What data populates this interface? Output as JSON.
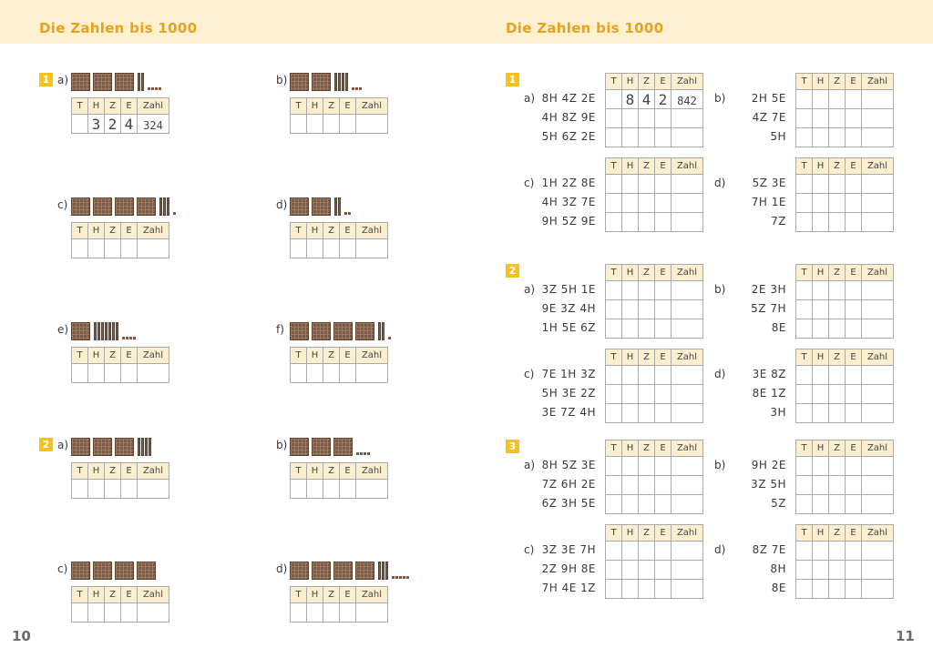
{
  "left_page": {
    "title": "Die Zahlen bis 1000",
    "page_number": "10",
    "exercise1": {
      "number": "1",
      "items": [
        {
          "label": "a)",
          "hundreds": 3,
          "tens": 2,
          "ones": 4,
          "answer": {
            "H": "3",
            "Z": "2",
            "E": "4",
            "Zahl": "324"
          }
        },
        {
          "label": "b)",
          "hundreds": 2,
          "tens": 4,
          "ones": 3
        },
        {
          "label": "c)",
          "hundreds": 4,
          "tens": 3,
          "ones": 1
        },
        {
          "label": "d)",
          "hundreds": 2,
          "tens": 2,
          "ones": 2
        },
        {
          "label": "e)",
          "hundreds": 1,
          "tens": 7,
          "ones": 4
        },
        {
          "label": "f)",
          "hundreds": 4,
          "tens": 2,
          "ones": 1
        }
      ]
    },
    "exercise2": {
      "number": "2",
      "items": [
        {
          "label": "a)",
          "hundreds": 3,
          "tens": 4,
          "ones": 0
        },
        {
          "label": "b)",
          "hundreds": 3,
          "tens": 0,
          "ones": 4
        },
        {
          "label": "c)",
          "hundreds": 4,
          "tens": 0,
          "ones": 0
        },
        {
          "label": "d)",
          "hundreds": 4,
          "tens": 3,
          "ones": 5
        }
      ]
    }
  },
  "right_page": {
    "title": "Die Zahlen bis 1000",
    "page_number": "11",
    "exercises": [
      {
        "number": "1",
        "groups": [
          {
            "label": "a)",
            "lines": [
              "8H 4Z 2E",
              "4H 8Z 9E",
              "5H 6Z 2E"
            ],
            "answer": {
              "H": "8",
              "Z": "4",
              "E": "2",
              "Zahl": "842"
            }
          },
          {
            "label": "b)",
            "lines": [
              "2H 5E",
              "4Z 7E",
              "5H"
            ]
          },
          {
            "label": "c)",
            "lines": [
              "1H 2Z 8E",
              "4H 3Z 7E",
              "9H 5Z 9E"
            ]
          },
          {
            "label": "d)",
            "lines": [
              "5Z 3E",
              "7H 1E",
              "7Z"
            ]
          }
        ]
      },
      {
        "number": "2",
        "groups": [
          {
            "label": "a)",
            "lines": [
              "3Z 5H 1E",
              "9E 3Z 4H",
              "1H 5E 6Z"
            ]
          },
          {
            "label": "b)",
            "lines": [
              "2E 3H",
              "5Z 7H",
              "8E"
            ]
          },
          {
            "label": "c)",
            "lines": [
              "7E 1H 3Z",
              "5H 3E 2Z",
              "3E 7Z 4H"
            ]
          },
          {
            "label": "d)",
            "lines": [
              "3E 8Z",
              "8E 1Z",
              "3H"
            ]
          }
        ]
      },
      {
        "number": "3",
        "groups": [
          {
            "label": "a)",
            "lines": [
              "8H 5Z 3E",
              "7Z 6H 2E",
              "6Z 3H 5E"
            ]
          },
          {
            "label": "b)",
            "lines": [
              "9H 2E",
              "3Z 5H",
              "5Z"
            ]
          },
          {
            "label": "c)",
            "lines": [
              "3Z 3E 7H",
              "2Z 9H 8E",
              "7H 4E 1Z"
            ]
          },
          {
            "label": "d)",
            "lines": [
              "8Z 7E",
              "8H",
              "8E"
            ]
          }
        ]
      }
    ]
  },
  "table_headers": [
    "T",
    "H",
    "Z",
    "E",
    "Zahl"
  ]
}
